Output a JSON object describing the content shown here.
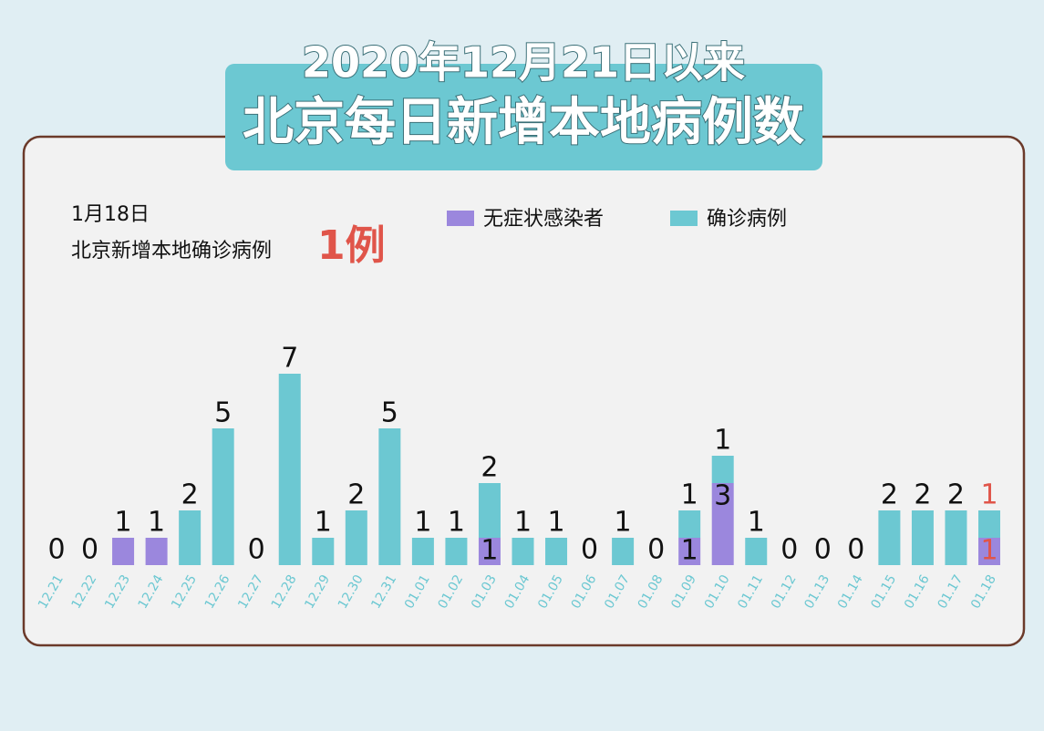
{
  "title_line1": "2020年12月21日以来",
  "title_line2": "北京每日新增本地病例数",
  "summary": {
    "date": "1月18日",
    "text": "北京新增本地确诊病例",
    "count": "1例"
  },
  "chart_data": {
    "type": "stacked-bar",
    "categories": [
      "12.21",
      "12.22",
      "12.23",
      "12.24",
      "12.25",
      "12.26",
      "12.27",
      "12.28",
      "12.29",
      "12.30",
      "12.31",
      "01.01",
      "01.02",
      "01.03",
      "01.04",
      "01.05",
      "01.06",
      "01.07",
      "01.08",
      "01.09",
      "01.10",
      "01.11",
      "01.12",
      "01.13",
      "01.14",
      "01.15",
      "01.16",
      "01.17",
      "01.18"
    ],
    "series": [
      {
        "name": "无症状感染者",
        "color": "#9b87dd",
        "values": [
          0,
          0,
          1,
          1,
          0,
          0,
          0,
          0,
          0,
          0,
          0,
          0,
          0,
          1,
          0,
          0,
          0,
          0,
          0,
          1,
          3,
          0,
          0,
          0,
          0,
          0,
          0,
          0,
          1
        ]
      },
      {
        "name": "确诊病例",
        "color": "#6cc8d2",
        "values": [
          0,
          0,
          0,
          0,
          2,
          5,
          0,
          7,
          1,
          2,
          5,
          1,
          1,
          2,
          1,
          1,
          0,
          1,
          0,
          1,
          1,
          1,
          0,
          0,
          0,
          2,
          2,
          2,
          1
        ]
      }
    ],
    "ylim": [
      0,
      7
    ],
    "highlight_color": "#e0554a"
  }
}
